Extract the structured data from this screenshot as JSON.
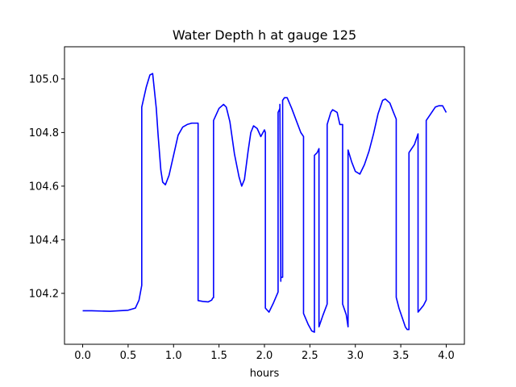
{
  "chart_data": {
    "type": "line",
    "title": "Water Depth h at gauge 125",
    "xlabel": "hours",
    "ylabel": "",
    "xlim": [
      -0.2,
      4.2
    ],
    "ylim": [
      104.01,
      105.12
    ],
    "xticks": [
      0.0,
      0.5,
      1.0,
      1.5,
      2.0,
      2.5,
      3.0,
      3.5,
      4.0
    ],
    "xtick_labels": [
      "0.0",
      "0.5",
      "1.0",
      "1.5",
      "2.0",
      "2.5",
      "3.0",
      "3.5",
      "4.0"
    ],
    "yticks": [
      104.2,
      104.4,
      104.6,
      104.8,
      105.0
    ],
    "ytick_labels": [
      "104.2",
      "104.4",
      "104.6",
      "104.8",
      "105.0"
    ],
    "grid": false,
    "series": [
      {
        "color": "#0000ff",
        "x": [
          0.0,
          0.1,
          0.3,
          0.5,
          0.58,
          0.62,
          0.65,
          0.65,
          0.7,
          0.74,
          0.77,
          0.81,
          0.83,
          0.86,
          0.88,
          0.91,
          0.95,
          1.0,
          1.05,
          1.1,
          1.15,
          1.2,
          1.25,
          1.27,
          1.27,
          1.32,
          1.38,
          1.42,
          1.43,
          1.44,
          1.44,
          1.5,
          1.55,
          1.58,
          1.62,
          1.67,
          1.72,
          1.75,
          1.78,
          1.82,
          1.85,
          1.88,
          1.92,
          1.96,
          2.0,
          2.01,
          2.01,
          2.05,
          2.1,
          2.15,
          2.15,
          2.17,
          2.17,
          2.18,
          2.18,
          2.2,
          2.2,
          2.22,
          2.25,
          2.3,
          2.35,
          2.4,
          2.43,
          2.43,
          2.48,
          2.52,
          2.55,
          2.55,
          2.58,
          2.6,
          2.6,
          2.64,
          2.69,
          2.69,
          2.73,
          2.75,
          2.8,
          2.83,
          2.86,
          2.86,
          2.9,
          2.92,
          2.92,
          2.96,
          3.0,
          3.05,
          3.1,
          3.15,
          3.2,
          3.25,
          3.3,
          3.33,
          3.38,
          3.42,
          3.45,
          3.45,
          3.48,
          3.52,
          3.55,
          3.57,
          3.59,
          3.59,
          3.65,
          3.69,
          3.69,
          3.75,
          3.78,
          3.78,
          3.82,
          3.88,
          3.92,
          3.96,
          4.0
        ],
        "y": [
          104.135,
          104.135,
          104.133,
          104.137,
          104.145,
          104.175,
          104.23,
          104.895,
          104.97,
          105.015,
          105.02,
          104.89,
          104.79,
          104.66,
          104.615,
          104.605,
          104.64,
          104.715,
          104.79,
          104.82,
          104.83,
          104.835,
          104.835,
          104.835,
          104.173,
          104.17,
          104.168,
          104.175,
          104.182,
          104.184,
          104.845,
          104.89,
          104.905,
          104.895,
          104.84,
          104.72,
          104.635,
          104.6,
          104.625,
          104.73,
          104.8,
          104.825,
          104.815,
          104.785,
          104.81,
          104.8,
          104.145,
          104.13,
          104.165,
          104.205,
          104.875,
          104.89,
          104.905,
          104.245,
          104.26,
          104.26,
          104.92,
          104.93,
          104.93,
          104.89,
          104.845,
          104.8,
          104.785,
          104.125,
          104.085,
          104.06,
          104.055,
          104.715,
          104.725,
          104.74,
          104.075,
          104.115,
          104.16,
          104.83,
          104.875,
          104.885,
          104.875,
          104.83,
          104.83,
          104.16,
          104.12,
          104.075,
          104.735,
          104.69,
          104.655,
          104.645,
          104.68,
          104.73,
          104.795,
          104.87,
          104.92,
          104.925,
          104.91,
          104.875,
          104.85,
          104.185,
          104.145,
          104.105,
          104.075,
          104.065,
          104.065,
          104.725,
          104.755,
          104.795,
          104.13,
          104.155,
          104.175,
          104.845,
          104.865,
          104.895,
          104.9,
          104.9,
          104.875
        ]
      }
    ]
  }
}
